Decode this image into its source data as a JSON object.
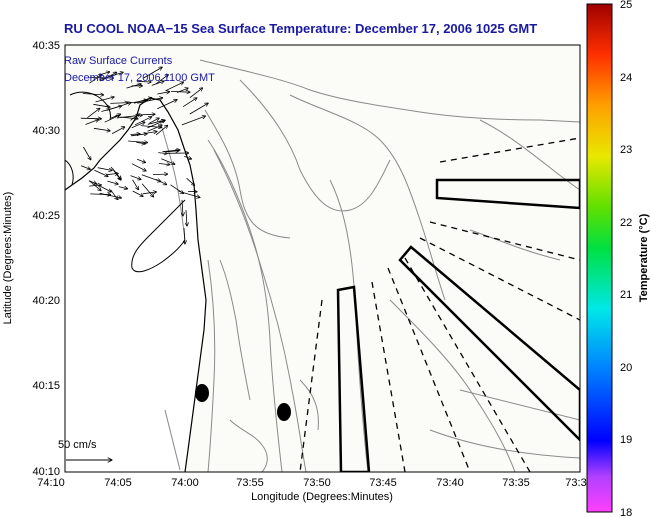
{
  "title": "RU COOL  NOAA−15  Sea Surface Temperature:  December 17, 2006 1025 GMT",
  "annotation": {
    "line1": "Raw Surface Currents",
    "line2": "December 17, 2006 1100 GMT"
  },
  "scale_label": "50 cm/s",
  "axes": {
    "xlabel": "Longitude (Degrees:Minutes)",
    "ylabel": "Latitude (Degrees:Minutes)",
    "xticks": [
      "74:10",
      "74:05",
      "74:00",
      "73:55",
      "73:50",
      "73:45",
      "73:40",
      "73:35",
      "73:3"
    ],
    "yticks": [
      "40:35",
      "40:30",
      "40:25",
      "40:20",
      "40:15",
      "40:10"
    ]
  },
  "colorbar": {
    "label": "Temperature (°C)",
    "ticks": [
      "25",
      "24",
      "23",
      "22",
      "21",
      "20",
      "19",
      "18"
    ],
    "range": [
      18,
      25
    ]
  },
  "colors": {
    "title": "#1a1aa0",
    "land": "#ffffff",
    "water": "#fbfbf7",
    "contour": "#8a8a8a",
    "coast": "#000000"
  }
}
